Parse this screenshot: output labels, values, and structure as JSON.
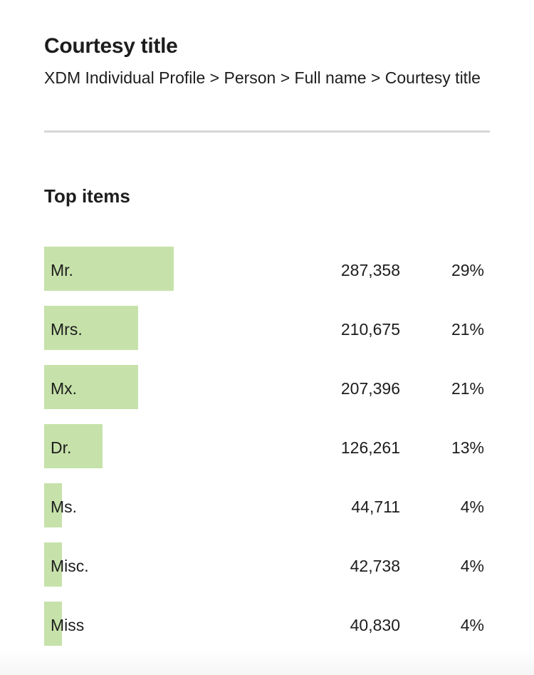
{
  "header": {
    "title": "Courtesy title",
    "breadcrumb": "XDM Individual Profile > Person > Full name > Courtesy title"
  },
  "section_title": "Top items",
  "bar_color": "#c6e2aa",
  "items": [
    {
      "label": "Mr.",
      "count": "287,358",
      "percent_label": "29%",
      "percent": 29
    },
    {
      "label": "Mrs.",
      "count": "210,675",
      "percent_label": "21%",
      "percent": 21
    },
    {
      "label": "Mx.",
      "count": "207,396",
      "percent_label": "21%",
      "percent": 21
    },
    {
      "label": "Dr.",
      "count": "126,261",
      "percent_label": "13%",
      "percent": 13
    },
    {
      "label": "Ms.",
      "count": "44,711",
      "percent_label": "4%",
      "percent": 4
    },
    {
      "label": "Misc.",
      "count": "42,738",
      "percent_label": "4%",
      "percent": 4
    },
    {
      "label": "Miss",
      "count": "40,830",
      "percent_label": "4%",
      "percent": 4
    }
  ]
}
